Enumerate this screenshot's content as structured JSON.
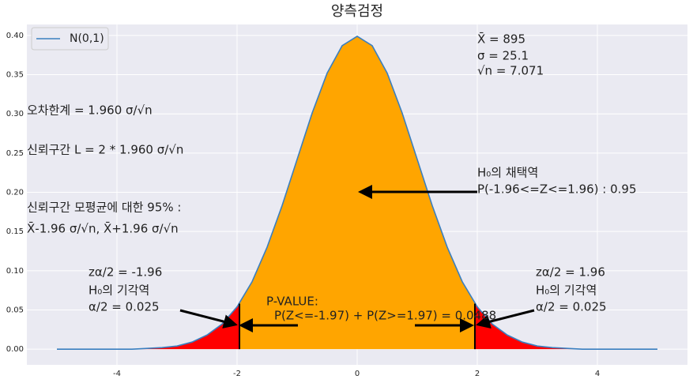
{
  "chart_data": {
    "type": "area",
    "title": "양측검정",
    "x": [
      -5,
      -4.75,
      -4.5,
      -4.25,
      -4,
      -3.75,
      -3.5,
      -3.25,
      -3,
      -2.75,
      -2.5,
      -2.25,
      -2,
      -1.75,
      -1.5,
      -1.25,
      -1,
      -0.75,
      -0.5,
      -0.25,
      0,
      0.25,
      0.5,
      0.75,
      1,
      1.25,
      1.5,
      1.75,
      2,
      2.25,
      2.5,
      2.75,
      3,
      3.25,
      3.5,
      3.75,
      4,
      4.25,
      4.5,
      4.75,
      5
    ],
    "series": [
      {
        "name": "N(0,1)",
        "color": "#3a7fc0",
        "values": [
          0,
          0,
          0,
          0,
          0,
          0,
          0.001,
          0.002,
          0.004,
          0.009,
          0.018,
          0.032,
          0.054,
          0.086,
          0.13,
          0.183,
          0.242,
          0.301,
          0.352,
          0.387,
          0.399,
          0.387,
          0.352,
          0.301,
          0.242,
          0.183,
          0.13,
          0.086,
          0.054,
          0.032,
          0.018,
          0.009,
          0.004,
          0.002,
          0.001,
          0,
          0,
          0,
          0,
          0,
          0
        ]
      }
    ],
    "fill_regions": [
      {
        "from": -5,
        "to": -1.96,
        "color": "#ff0000"
      },
      {
        "from": -1.96,
        "to": 1.96,
        "color": "#ffa500"
      },
      {
        "from": 1.96,
        "to": 5,
        "color": "#ff0000"
      }
    ],
    "vlines": [
      {
        "x": -1.96,
        "ymax": 0.058
      },
      {
        "x": 1.96,
        "ymax": 0.058
      }
    ],
    "xlim": [
      -5.5,
      5.5
    ],
    "ylim": [
      -0.02,
      0.414
    ],
    "xticks": [
      -4,
      -2,
      0,
      2,
      4
    ],
    "yticks": [
      {
        "value": 0,
        "label": "0.00"
      },
      {
        "value": 0.05,
        "label": "0.05"
      },
      {
        "value": 0.1,
        "label": "0.10"
      },
      {
        "value": 0.15,
        "label": "0.15"
      },
      {
        "value": 0.2,
        "label": "0.20"
      },
      {
        "value": 0.25,
        "label": "0.25"
      },
      {
        "value": 0.3,
        "label": "0.30"
      },
      {
        "value": 0.35,
        "label": "0.35"
      },
      {
        "value": 0.4,
        "label": "0.40"
      }
    ],
    "grid": true,
    "legend": "upper left",
    "annotations": [
      "X̄ = 895",
      "σ = 25.1",
      "√n = 7.071",
      "오차한계 = 1.960 σ/√n",
      "신뢰구간 L = 2 * 1.960 σ/√n",
      "신뢰구간 모평균에 대한 95% :",
      "X̄-1.96 σ/√n, X̄+1.96 σ/√n",
      "H₀의 채택역",
      "P(-1.96<=Z<=1.96) : 0.95",
      "zα/2 = -1.96",
      "H₀의 기각역",
      "α/2 = 0.025",
      "zα/2 = 1.96",
      "H₀의 기각역",
      "α/2 = 0.025",
      "P-VALUE:",
      "P(Z<=-1.97) + P(Z>=1.97)  = 0.0488"
    ]
  }
}
